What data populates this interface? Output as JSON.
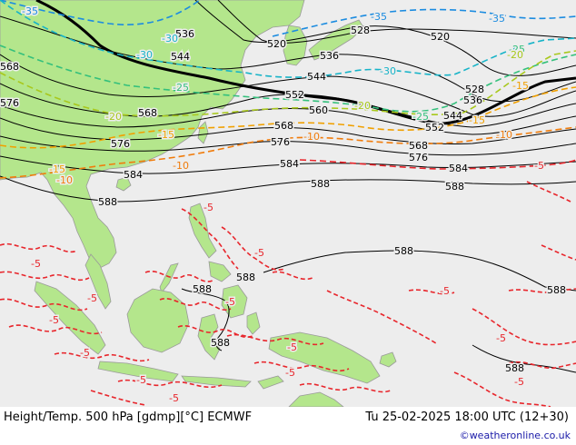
{
  "footer": {
    "title": "Height/Temp. 500 hPa [gdmp][°C] ECMWF",
    "valid": "Tu 25-02-2025 18:00 UTC (12+30)",
    "credit": "©weatheronline.co.uk"
  },
  "colors": {
    "sea": "#ededed",
    "land": "#b4e68c",
    "coast": "#9a9a9a",
    "height_contour": "#000000",
    "temp_neg": "#e8262c",
    "temp_m10": "#f07c0c",
    "temp_m15": "#f0a000",
    "temp_m20": "#a8c81c",
    "temp_m25": "#34c07c",
    "temp_m30": "#18b4c8",
    "temp_m35": "#1c8ce0"
  },
  "height_labels": [
    "536",
    "520",
    "528",
    "520",
    "568",
    "544",
    "536",
    "544",
    "552",
    "576",
    "568",
    "560",
    "528",
    "536",
    "544",
    "552",
    "568",
    "568",
    "576",
    "576",
    "576",
    "584",
    "584",
    "584",
    "588",
    "588",
    "588",
    "588",
    "588",
    "588",
    "588",
    "588",
    "588"
  ],
  "temp_labels": [
    "-35",
    "-30",
    "-35",
    "-35",
    "-30",
    "-25",
    "-30",
    "-25",
    "-20",
    "-20",
    "-20",
    "-15",
    "-25",
    "-10",
    "-15",
    "-10",
    "-15",
    "-15",
    "-10",
    "-10",
    "-5",
    "-5",
    "-5",
    "-5",
    "-5",
    "-5",
    "-5",
    "-5",
    "-5",
    "-5",
    "-5",
    "-5",
    "-5",
    "-5",
    "-5"
  ]
}
